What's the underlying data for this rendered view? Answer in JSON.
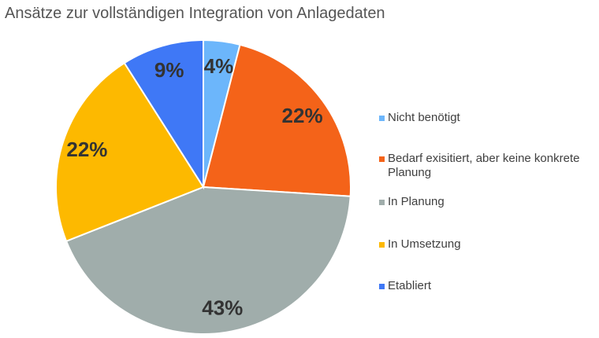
{
  "chart_data": {
    "type": "pie",
    "title": "Ansätze zur vollständigen Integration von Anlagedaten",
    "legend_position": "right",
    "slices": [
      {
        "label": "Nicht benötigt",
        "value": 4,
        "display": "4%",
        "color": "#6cb6fb"
      },
      {
        "label": "Bedarf exisitiert, aber keine konkrete Planung",
        "value": 22,
        "display": "22%",
        "color": "#f46319"
      },
      {
        "label": "In Planung",
        "value": 43,
        "display": "43%",
        "color": "#a0adab"
      },
      {
        "label": "In Umsetzung",
        "value": 22,
        "display": "22%",
        "color": "#fdb900"
      },
      {
        "label": "Etabliert",
        "value": 9,
        "display": "9%",
        "color": "#3f78f6"
      }
    ]
  }
}
